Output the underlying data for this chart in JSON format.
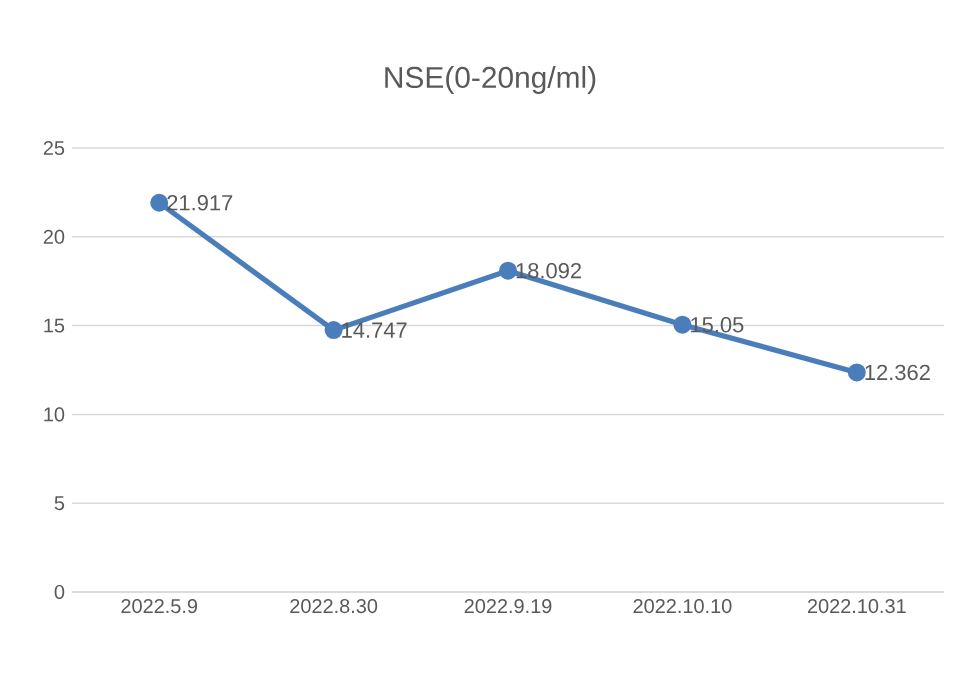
{
  "chart_data": {
    "type": "line",
    "title": "NSE(0-20ng/ml)",
    "categories": [
      "2022.5.9",
      "2022.8.30",
      "2022.9.19",
      "2022.10.10",
      "2022.10.31"
    ],
    "values": [
      21.917,
      14.747,
      18.092,
      15.05,
      12.362
    ],
    "color": "#4a7ebb",
    "ylim": [
      0,
      25
    ],
    "yticks": [
      0,
      5,
      10,
      15,
      20,
      25
    ],
    "grid": "y",
    "marker": "circle",
    "line_style": "solid",
    "data_labels": true
  }
}
